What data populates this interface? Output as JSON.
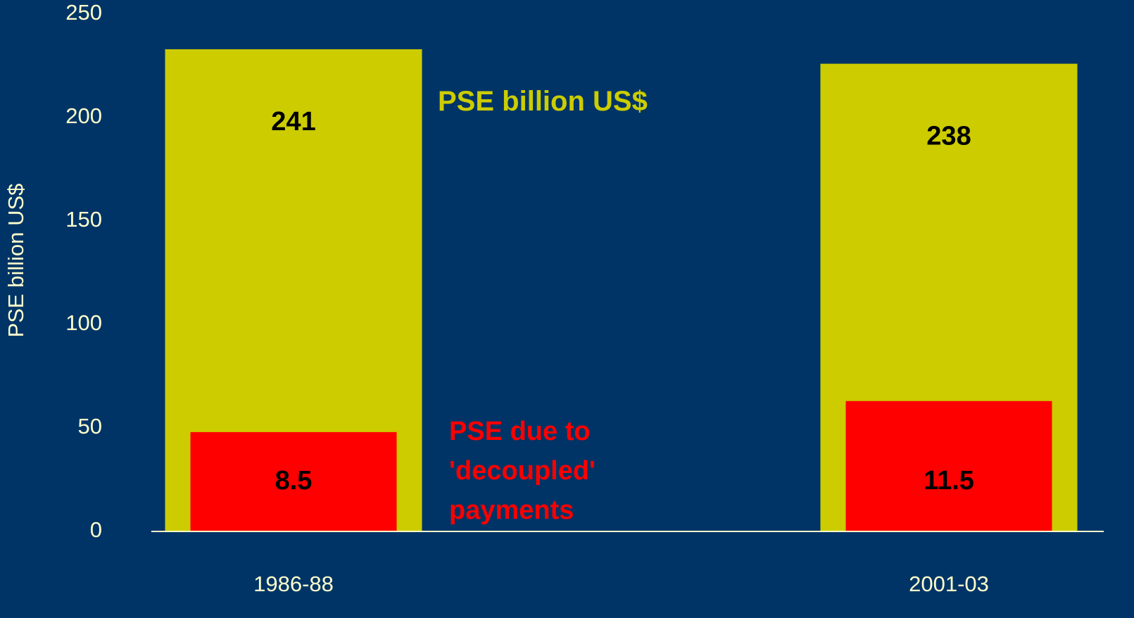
{
  "chart_data": {
    "type": "bar",
    "y_label": "PSE billion US$",
    "categories": [
      "1986-88",
      "2001-03"
    ],
    "series": [
      {
        "name": "PSE billion US$",
        "color": "#cccc00",
        "values": [
          233,
          226
        ]
      },
      {
        "name": "PSE due to 'decoupled' payments",
        "color": "#ff0000",
        "values": [
          48,
          63
        ]
      }
    ],
    "annotations": [
      [
        "241",
        "238"
      ],
      [
        "8.5",
        "11.5"
      ]
    ],
    "ylim": [
      0,
      250
    ],
    "yticks": [
      0,
      50,
      100,
      150,
      200,
      250
    ],
    "axis_color": "#ffffcc"
  }
}
